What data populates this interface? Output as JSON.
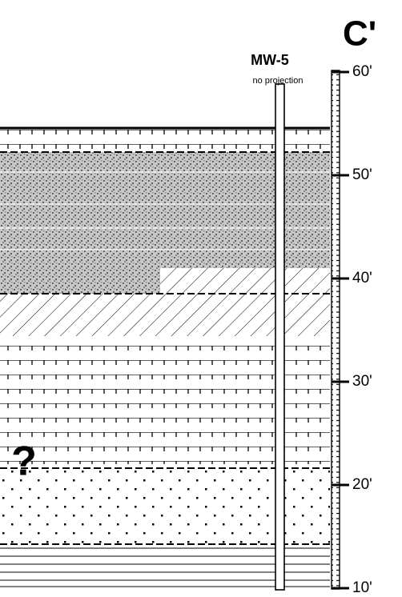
{
  "header": {
    "title": "C'"
  },
  "well": {
    "label": "MW-5",
    "note": "no projection"
  },
  "unknown_marker": "?",
  "scale": {
    "lim": [
      10,
      60
    ],
    "ticks": [
      {
        "value": 60,
        "label": "60'"
      },
      {
        "value": 50,
        "label": "50'"
      },
      {
        "value": 40,
        "label": "40'"
      },
      {
        "value": 30,
        "label": "30'"
      },
      {
        "value": 20,
        "label": "20'"
      },
      {
        "value": 10,
        "label": "10'"
      }
    ]
  }
}
